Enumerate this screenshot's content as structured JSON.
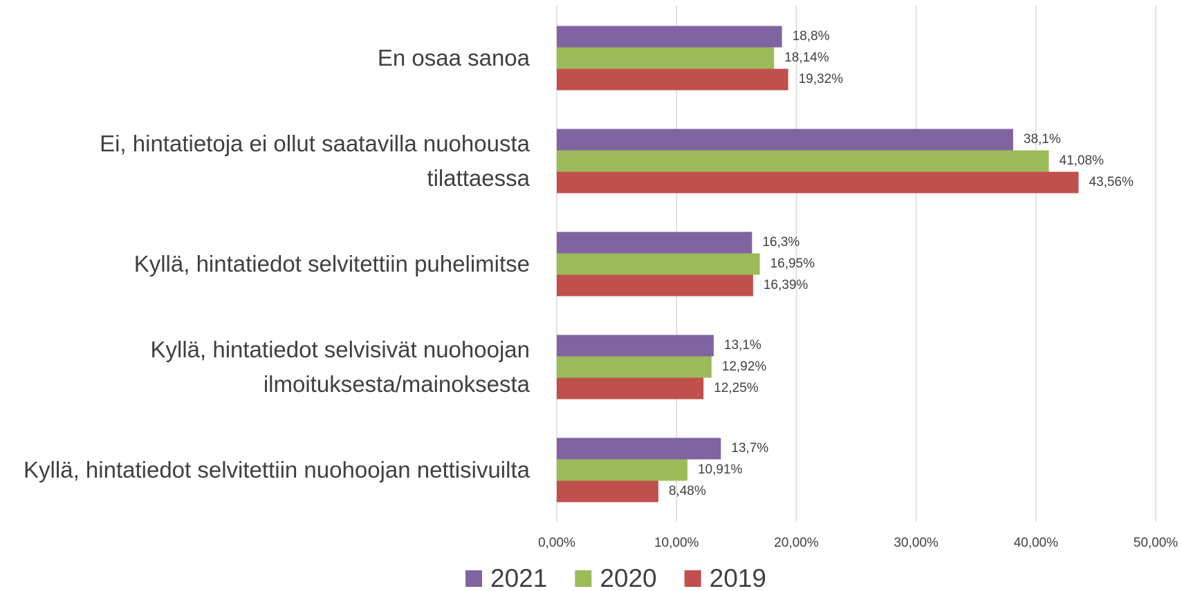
{
  "chart_data": {
    "type": "bar",
    "orientation": "horizontal",
    "categories": [
      "En osaa sanoa",
      "Ei, hintatietoja ei ollut saatavilla nuohousta tilattaessa",
      "Kyllä, hintatiedot selvitettiin puhelimitse",
      "Kyllä, hintatiedot selvisivät nuohoojan ilmoituksesta/mainoksesta",
      "Kyllä, hintatiedot selvitettiin nuohoojan nettisivuilta"
    ],
    "series": [
      {
        "name": "2021",
        "color": "#8064a2",
        "values": [
          18.8,
          38.1,
          16.3,
          13.1,
          13.7
        ],
        "value_labels": [
          "18,8%",
          "38,1%",
          "16,3%",
          "13,1%",
          "13,7%"
        ]
      },
      {
        "name": "2020",
        "color": "#9bbb59",
        "values": [
          18.14,
          41.08,
          16.95,
          12.92,
          10.91
        ],
        "value_labels": [
          "18,14%",
          "41,08%",
          "16,95%",
          "12,92%",
          "10,91%"
        ]
      },
      {
        "name": "2019",
        "color": "#c0504d",
        "values": [
          19.32,
          43.56,
          16.39,
          12.25,
          8.48
        ],
        "value_labels": [
          "19,32%",
          "43,56%",
          "16,39%",
          "12,25%",
          "8,48%"
        ]
      }
    ],
    "xlim": [
      0,
      50
    ],
    "xticks": [
      {
        "value": 0,
        "label": "0,00%"
      },
      {
        "value": 10,
        "label": "10,00%"
      },
      {
        "value": 20,
        "label": "20,00%"
      },
      {
        "value": 30,
        "label": "30,00%"
      },
      {
        "value": 40,
        "label": "40,00%"
      },
      {
        "value": 50,
        "label": "50,00%"
      }
    ],
    "grid": true,
    "legend": "bottom"
  }
}
